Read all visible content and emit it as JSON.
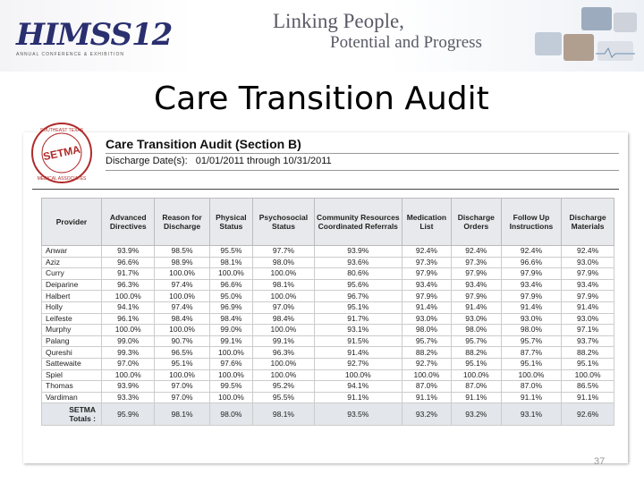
{
  "header": {
    "brand": "HIMSS12",
    "brand_sub": "ANNUAL CONFERENCE & EXHIBITION",
    "tagline_line1": "Linking People,",
    "tagline_line2": "Potential and Progress"
  },
  "slide_title": "Care Transition Audit",
  "report": {
    "seal_text": "SOUTHEAST TEXAS MEDICAL ASSOCIATES, LLP",
    "seal_center": "SETMA",
    "title": "Care Transition Audit (Section B)",
    "date_label": "Discharge Date(s):",
    "date_value": "01/01/2011 through 10/31/2011"
  },
  "table": {
    "headers": [
      "Provider",
      "Advanced Directives",
      "Reason for Discharge",
      "Physical Status",
      "Psychosocial Status",
      "Community Resources Coordinated Referrals",
      "Medication List",
      "Discharge Orders",
      "Follow Up Instructions",
      "Discharge Materials"
    ],
    "rows": [
      [
        "Anwar",
        "93.9%",
        "98.5%",
        "95.5%",
        "97.7%",
        "93.9%",
        "92.4%",
        "92.4%",
        "92.4%",
        "92.4%"
      ],
      [
        "Aziz",
        "96.6%",
        "98.9%",
        "98.1%",
        "98.0%",
        "93.6%",
        "97.3%",
        "97.3%",
        "96.6%",
        "93.0%"
      ],
      [
        "Curry",
        "91.7%",
        "100.0%",
        "100.0%",
        "100.0%",
        "80.6%",
        "97.9%",
        "97.9%",
        "97.9%",
        "97.9%"
      ],
      [
        "Deiparine",
        "96.3%",
        "97.4%",
        "96.6%",
        "98.1%",
        "95.6%",
        "93.4%",
        "93.4%",
        "93.4%",
        "93.4%"
      ],
      [
        "Halbert",
        "100.0%",
        "100.0%",
        "95.0%",
        "100.0%",
        "96.7%",
        "97.9%",
        "97.9%",
        "97.9%",
        "97.9%"
      ],
      [
        "Holly",
        "94.1%",
        "97.4%",
        "96.9%",
        "97.0%",
        "95.1%",
        "91.4%",
        "91.4%",
        "91.4%",
        "91.4%"
      ],
      [
        "Leifeste",
        "96.1%",
        "98.4%",
        "98.4%",
        "98.4%",
        "91.7%",
        "93.0%",
        "93.0%",
        "93.0%",
        "93.0%"
      ],
      [
        "Murphy",
        "100.0%",
        "100.0%",
        "99.0%",
        "100.0%",
        "93.1%",
        "98.0%",
        "98.0%",
        "98.0%",
        "97.1%"
      ],
      [
        "Palang",
        "99.0%",
        "90.7%",
        "99.1%",
        "99.1%",
        "91.5%",
        "95.7%",
        "95.7%",
        "95.7%",
        "93.7%"
      ],
      [
        "Qureshi",
        "99.3%",
        "96.5%",
        "100.0%",
        "96.3%",
        "91.4%",
        "88.2%",
        "88.2%",
        "87.7%",
        "88.2%"
      ],
      [
        "Sattewaite",
        "97.0%",
        "95.1%",
        "97.6%",
        "100.0%",
        "92.7%",
        "92.7%",
        "95.1%",
        "95.1%",
        "95.1%"
      ],
      [
        "Spiel",
        "100.0%",
        "100.0%",
        "100.0%",
        "100.0%",
        "100.0%",
        "100.0%",
        "100.0%",
        "100.0%",
        "100.0%"
      ],
      [
        "Thomas",
        "93.9%",
        "97.0%",
        "99.5%",
        "95.2%",
        "94.1%",
        "87.0%",
        "87.0%",
        "87.0%",
        "86.5%"
      ],
      [
        "Vardiman",
        "93.3%",
        "97.0%",
        "100.0%",
        "95.5%",
        "91.1%",
        "91.1%",
        "91.1%",
        "91.1%",
        "91.1%"
      ]
    ],
    "total_row": [
      "SETMA Totals :",
      "95.9%",
      "98.1%",
      "98.0%",
      "98.1%",
      "93.5%",
      "93.2%",
      "93.2%",
      "93.1%",
      "92.6%"
    ]
  },
  "page_number": "37",
  "colors": {
    "brand": "#2a2f6f",
    "seal_red": "#b02a2a",
    "header_fill": "#e7e9ec"
  }
}
